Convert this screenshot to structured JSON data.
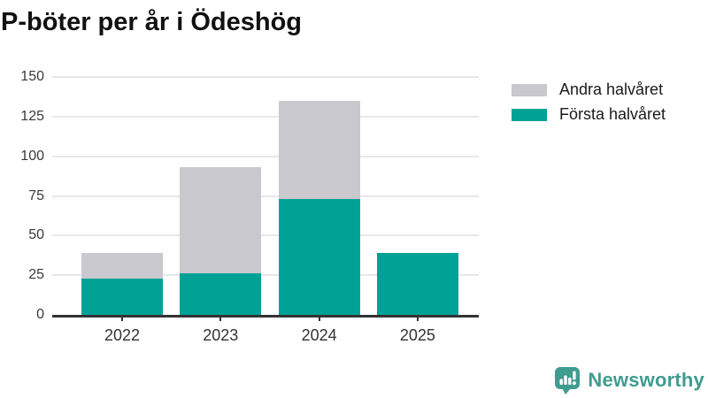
{
  "title": "P-böter per år i Ödeshög",
  "chart_data": {
    "type": "bar",
    "stacked": true,
    "title": "P-böter per år i Ödeshög",
    "categories": [
      "2022",
      "2023",
      "2024",
      "2025"
    ],
    "series": [
      {
        "name": "Andra halvåret",
        "color": "#c9c8ce",
        "values": [
          16,
          67,
          62,
          0
        ]
      },
      {
        "name": "Första halvåret",
        "color": "#00a296",
        "values": [
          23,
          26,
          73,
          39
        ]
      }
    ],
    "stacked_totals": [
      39,
      93,
      135,
      39
    ],
    "xlabel": "",
    "ylabel": "",
    "ylim": [
      0,
      150
    ],
    "yticks": [
      0,
      25,
      50,
      75,
      100,
      125,
      150
    ],
    "grid": true,
    "legend_position": "top-right",
    "legend_order": [
      "Andra halvåret",
      "Första halvåret"
    ]
  },
  "colors": {
    "first_half": "#00a296",
    "second_half": "#c9c8ce",
    "gridline": "#e8e7ea",
    "axis": "#333333",
    "title_text": "#111111",
    "brand_teal": "#3f9c8f"
  },
  "branding": {
    "wordmark": "Newsworthy"
  }
}
